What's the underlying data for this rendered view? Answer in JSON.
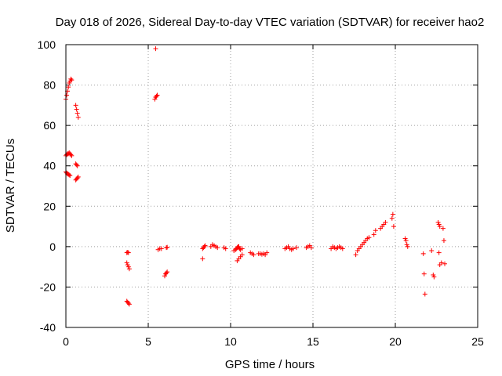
{
  "chart_data": {
    "type": "scatter",
    "title": "Day 018 of 2026, Sidereal Day-to-day VTEC variation (SDTVAR) for receiver hao2",
    "xlabel": "GPS time / hours",
    "ylabel": "SDTVAR / TECUs",
    "xlim": [
      0,
      25
    ],
    "ylim": [
      -40,
      100
    ],
    "xticks": [
      0,
      5,
      10,
      15,
      20,
      25
    ],
    "yticks": [
      -40,
      -20,
      0,
      20,
      40,
      60,
      80,
      100
    ],
    "xtick_labels": [
      "0",
      "5",
      "10",
      "15",
      "20",
      "25"
    ],
    "ytick_labels": [
      "-40",
      "-20",
      "0",
      "20",
      "40",
      "60",
      "80",
      "100"
    ],
    "grid": true,
    "marker": "+",
    "color": "#ff0000",
    "series": [
      {
        "name": "SDTVAR",
        "points": [
          [
            0.0,
            73
          ],
          [
            0.05,
            75
          ],
          [
            0.1,
            77
          ],
          [
            0.15,
            79
          ],
          [
            0.2,
            81
          ],
          [
            0.25,
            82
          ],
          [
            0.3,
            83
          ],
          [
            0.35,
            82.5
          ],
          [
            0.0,
            45
          ],
          [
            0.05,
            45.5
          ],
          [
            0.1,
            46
          ],
          [
            0.15,
            46
          ],
          [
            0.2,
            46.5
          ],
          [
            0.25,
            46
          ],
          [
            0.3,
            45.5
          ],
          [
            0.35,
            45
          ],
          [
            0.0,
            37
          ],
          [
            0.05,
            36.5
          ],
          [
            0.1,
            36
          ],
          [
            0.15,
            35.8
          ],
          [
            0.2,
            35.5
          ],
          [
            0.25,
            35.2
          ],
          [
            0.6,
            70
          ],
          [
            0.65,
            68
          ],
          [
            0.7,
            66
          ],
          [
            0.75,
            64
          ],
          [
            0.6,
            41
          ],
          [
            0.65,
            40.5
          ],
          [
            0.7,
            40
          ],
          [
            0.6,
            33
          ],
          [
            0.65,
            33.5
          ],
          [
            0.7,
            34
          ],
          [
            0.75,
            34.5
          ],
          [
            3.7,
            -3
          ],
          [
            3.75,
            -2.8
          ],
          [
            3.8,
            -3
          ],
          [
            3.7,
            -8
          ],
          [
            3.75,
            -9
          ],
          [
            3.8,
            -10
          ],
          [
            3.85,
            -11
          ],
          [
            3.7,
            -27
          ],
          [
            3.75,
            -27.5
          ],
          [
            3.8,
            -28
          ],
          [
            3.85,
            -28.5
          ],
          [
            5.45,
            98
          ],
          [
            5.4,
            73
          ],
          [
            5.45,
            74
          ],
          [
            5.5,
            74.5
          ],
          [
            5.55,
            75
          ],
          [
            5.6,
            -1.5
          ],
          [
            5.7,
            -1
          ],
          [
            5.8,
            -1
          ],
          [
            6.0,
            -14.5
          ],
          [
            6.05,
            -13.5
          ],
          [
            6.1,
            -13
          ],
          [
            6.15,
            -12.5
          ],
          [
            6.1,
            -0.5
          ],
          [
            6.15,
            -0.3
          ],
          [
            8.3,
            -6
          ],
          [
            8.3,
            -1
          ],
          [
            8.35,
            -0.5
          ],
          [
            8.4,
            0
          ],
          [
            8.45,
            0.5
          ],
          [
            8.8,
            0
          ],
          [
            8.9,
            1
          ],
          [
            9.0,
            0.5
          ],
          [
            9.1,
            0
          ],
          [
            9.2,
            -0.5
          ],
          [
            9.6,
            -0.5
          ],
          [
            9.7,
            -1
          ],
          [
            10.2,
            -2
          ],
          [
            10.3,
            -1.5
          ],
          [
            10.35,
            -1
          ],
          [
            10.4,
            -0.5
          ],
          [
            10.45,
            0
          ],
          [
            10.5,
            0
          ],
          [
            10.55,
            -1
          ],
          [
            10.6,
            -1.5
          ],
          [
            10.7,
            -1
          ],
          [
            10.4,
            -7
          ],
          [
            10.5,
            -6
          ],
          [
            10.6,
            -5
          ],
          [
            10.7,
            -4
          ],
          [
            11.2,
            -3
          ],
          [
            11.3,
            -3.5
          ],
          [
            11.4,
            -4
          ],
          [
            11.7,
            -3.5
          ],
          [
            11.8,
            -3.5
          ],
          [
            11.9,
            -3.8
          ],
          [
            12.0,
            -3.5
          ],
          [
            12.1,
            -4
          ],
          [
            12.2,
            -3
          ],
          [
            13.3,
            -1
          ],
          [
            13.4,
            -0.5
          ],
          [
            13.5,
            0
          ],
          [
            13.6,
            -1
          ],
          [
            13.7,
            -1.5
          ],
          [
            13.8,
            -1
          ],
          [
            14.0,
            -0.5
          ],
          [
            14.6,
            -0.5
          ],
          [
            14.7,
            0
          ],
          [
            14.8,
            0.5
          ],
          [
            14.9,
            -0.5
          ],
          [
            16.1,
            -1
          ],
          [
            16.2,
            0
          ],
          [
            16.3,
            -0.5
          ],
          [
            16.4,
            -1
          ],
          [
            16.5,
            -0.5
          ],
          [
            16.6,
            0
          ],
          [
            16.7,
            -0.5
          ],
          [
            16.8,
            -1
          ],
          [
            17.6,
            -4
          ],
          [
            17.7,
            -2
          ],
          [
            17.8,
            -1
          ],
          [
            17.9,
            0
          ],
          [
            18.0,
            1
          ],
          [
            18.1,
            2
          ],
          [
            18.2,
            3
          ],
          [
            18.3,
            4
          ],
          [
            18.4,
            4.5
          ],
          [
            18.7,
            6
          ],
          [
            18.8,
            8
          ],
          [
            19.1,
            9
          ],
          [
            19.2,
            10
          ],
          [
            19.3,
            11
          ],
          [
            19.4,
            12
          ],
          [
            19.8,
            14
          ],
          [
            19.85,
            16
          ],
          [
            19.9,
            10
          ],
          [
            20.6,
            4
          ],
          [
            20.65,
            3
          ],
          [
            20.7,
            1
          ],
          [
            20.75,
            0
          ],
          [
            21.7,
            -3.5
          ],
          [
            21.75,
            -13.5
          ],
          [
            21.8,
            -23.5
          ],
          [
            22.2,
            -2
          ],
          [
            22.3,
            -14
          ],
          [
            22.35,
            -15
          ],
          [
            22.6,
            12
          ],
          [
            22.65,
            11
          ],
          [
            22.7,
            10
          ],
          [
            22.65,
            -3
          ],
          [
            22.7,
            -9
          ],
          [
            22.8,
            -8
          ],
          [
            22.9,
            9
          ],
          [
            22.95,
            3
          ],
          [
            23.0,
            -8.5
          ]
        ]
      }
    ]
  }
}
